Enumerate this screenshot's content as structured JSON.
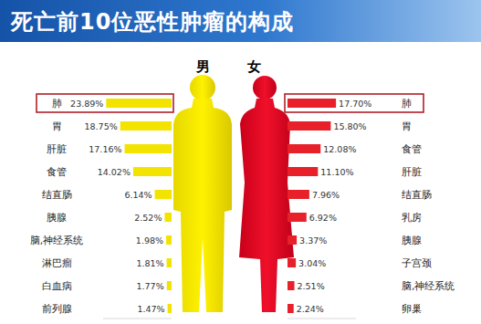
{
  "title": "死亡前10位恶性肿瘤的构成",
  "chart_data": [
    {
      "type": "bar",
      "title": "男",
      "orientation": "horizontal",
      "data_labels": true,
      "tick_labels": "y",
      "color": "#f2e400",
      "categories": [
        "肺",
        "胃",
        "肝脏",
        "食管",
        "结直肠",
        "胰腺",
        "脑,神经系统",
        "淋巴瘤",
        "白血病",
        "前列腺"
      ],
      "values": [
        23.89,
        18.75,
        17.16,
        14.02,
        6.14,
        2.52,
        1.98,
        1.81,
        1.77,
        1.47
      ],
      "value_labels": [
        "23.89%",
        "18.75%",
        "17.16%",
        "14.02%",
        "6.14%",
        "2.52%",
        "1.98%",
        "1.81%",
        "1.77%",
        "1.47%"
      ],
      "xlim": [
        0,
        25
      ]
    },
    {
      "type": "bar",
      "title": "女",
      "orientation": "horizontal",
      "data_labels": true,
      "tick_labels": "y",
      "color": "#e8202a",
      "categories": [
        "肺",
        "胃",
        "食管",
        "肝脏",
        "结直肠",
        "乳房",
        "胰腺",
        "子宫颈",
        "脑,神经系统",
        "卵巢"
      ],
      "values": [
        17.7,
        15.8,
        12.08,
        11.1,
        7.96,
        6.92,
        3.37,
        3.04,
        2.51,
        2.24
      ],
      "value_labels": [
        "17.70%",
        "15.80%",
        "12.08%",
        "11.10%",
        "7.96%",
        "6.92%",
        "3.37%",
        "3.04%",
        "2.51%",
        "2.24%"
      ],
      "xlim": [
        0,
        25
      ]
    }
  ]
}
